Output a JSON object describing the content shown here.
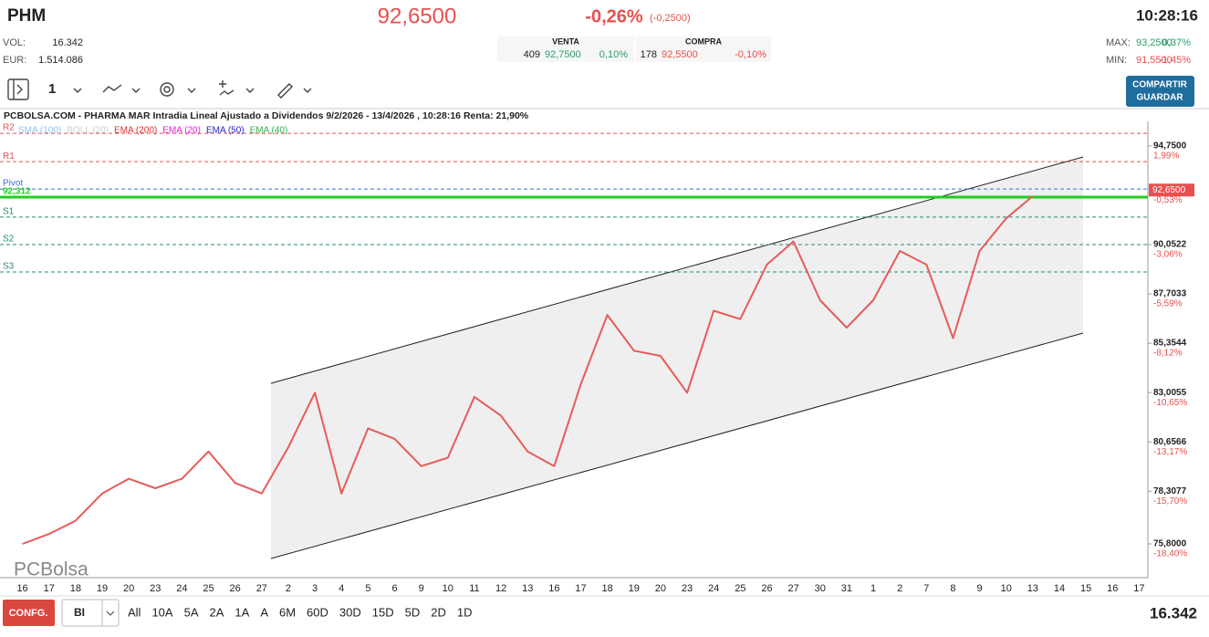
{
  "header": {
    "symbol": "PHM",
    "price": "92,6500",
    "change_pct": "-0,26%",
    "change": "(-0,2500)",
    "time": "10:28:16",
    "vol_label": "VOL:",
    "vol": "16.342",
    "eur_label": "EUR:",
    "eur": "1.514.086",
    "sell": {
      "label": "VENTA",
      "qty": "409",
      "price": "92,7500",
      "pct": "0,10%"
    },
    "buy": {
      "label": "COMPRA",
      "qty": "178",
      "price": "92,5500",
      "pct": "-0,10%"
    },
    "max_label": "MAX:",
    "max": "93,2500",
    "max_pct": "0,37%",
    "min_label": "MIN:",
    "min": "91,5500",
    "min_pct": "-1,45%"
  },
  "toolbar": {
    "interval": "1",
    "button_top": "COMPARTIR",
    "button_bottom": "GUARDAR"
  },
  "chart_data": {
    "type": "line",
    "title": "PCBOLSA.COM - PHARMA MAR Intradia Lineal Ajustado a Dividendos 9/2/2026 - 13/4/2026 , 10:28:16 Renta: 21,90%",
    "watermark": "PCBolsa",
    "color": "#e85a5a",
    "categories": [
      "16",
      "17",
      "18",
      "19",
      "20",
      "23",
      "24",
      "25",
      "26",
      "27",
      "2",
      "3",
      "4",
      "5",
      "6",
      "9",
      "10",
      "11",
      "12",
      "13",
      "16",
      "17",
      "18",
      "19",
      "20",
      "23",
      "24",
      "25",
      "26",
      "27",
      "30",
      "31",
      "1",
      "2",
      "7",
      "8",
      "9",
      "10",
      "13",
      "14",
      "15",
      "16",
      "17"
    ],
    "values": [
      75.8,
      76.27,
      76.9,
      78.2,
      78.9,
      78.45,
      78.9,
      80.2,
      78.7,
      78.2,
      80.4,
      83.0,
      78.2,
      81.3,
      80.8,
      79.5,
      79.9,
      82.8,
      81.9,
      80.2,
      79.5,
      83.4,
      86.7,
      85.0,
      84.75,
      83.0,
      86.9,
      86.5,
      89.1,
      90.2,
      87.4,
      86.1,
      87.4,
      89.75,
      89.1,
      85.6,
      89.75,
      91.3,
      92.36,
      null,
      null,
      null,
      null
    ],
    "ylim": [
      74.19,
      96.05
    ],
    "yticks": [
      {
        "value": 94.75,
        "label": "94,7500"
      },
      {
        "value": 90.0522,
        "label": "90,0522"
      },
      {
        "value": 87.7033,
        "label": "87,7033"
      },
      {
        "value": 85.3544,
        "label": "85,3544"
      },
      {
        "value": 83.0055,
        "label": "83,0055"
      },
      {
        "value": 80.6566,
        "label": "80,6566"
      },
      {
        "value": 78.3077,
        "label": "78,3077"
      },
      {
        "value": 75.8,
        "label": "75,8000"
      }
    ],
    "ytick_changes": [
      "1,99%",
      "-3,06%",
      "-5,59%",
      "-8,12%",
      "-10,65%",
      "-13,17%",
      "-15,70%",
      "-18,40%"
    ],
    "last": {
      "value": 92.65,
      "label": "92,6500",
      "change": "-0,53%"
    },
    "levels": [
      {
        "name": "R2",
        "value": 95.35,
        "color": "#e05050"
      },
      {
        "name": "R1",
        "value": 94.0,
        "color": "#e05050"
      },
      {
        "name": "Pivot",
        "value": 92.7,
        "color": "#3a6fd8"
      },
      {
        "name": "92,312",
        "value": 92.312,
        "color": "#22cc22"
      },
      {
        "name": "S1",
        "value": 91.36,
        "color": "#2a8a7a"
      },
      {
        "name": "S2",
        "value": 90.05,
        "color": "#2a8a7a"
      },
      {
        "name": "S3",
        "value": 88.75,
        "color": "#2a8a7a"
      }
    ],
    "indicators": [
      {
        "name": "SMA (100)",
        "color": "#8fc3ee"
      },
      {
        "name": "BOLL (20)",
        "color": "#cccccc"
      },
      {
        "name": "EMA (200)",
        "color": "#e03030"
      },
      {
        "name": "EMA (20)",
        "color": "#e020e0"
      },
      {
        "name": "EMA (50)",
        "color": "#2020d0"
      },
      {
        "name": "EMA (40)",
        "color": "#30b050"
      }
    ]
  },
  "footer": {
    "config": "CONFG.",
    "style": "BI",
    "ranges": [
      "All",
      "10A",
      "5A",
      "2A",
      "1A",
      "A",
      "6M",
      "60D",
      "30D",
      "15D",
      "5D",
      "2D",
      "1D"
    ],
    "volume": "16.342"
  }
}
